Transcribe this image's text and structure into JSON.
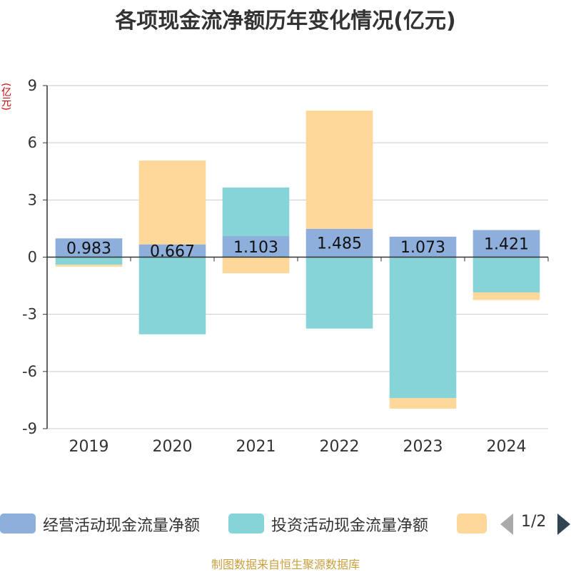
{
  "title": "各项现金流净额历年变化情况(亿元)",
  "unit_label": "(亿元)",
  "source": "制图数据来自恒生聚源数据库",
  "pager": {
    "text": "1/2"
  },
  "colors": {
    "operating": "#8eaedb",
    "investing": "#86d4d8",
    "financing": "#fdd899",
    "axis": "#333333",
    "grid": "#cccccc"
  },
  "legend": [
    {
      "label": "经营活动现金流量净额",
      "color": "#8eaedb"
    },
    {
      "label": "投资活动现金流量净额",
      "color": "#86d4d8"
    },
    {
      "label": "",
      "color": "#fdd899"
    }
  ],
  "chart_data": {
    "type": "bar",
    "stacked": true,
    "categories": [
      "2019",
      "2020",
      "2021",
      "2022",
      "2023",
      "2024"
    ],
    "series": [
      {
        "name": "经营活动现金流量净额",
        "values": [
          0.983,
          0.667,
          1.103,
          1.485,
          1.073,
          1.421
        ],
        "color": "#8eaedb",
        "labels": [
          "0.983",
          "0.667",
          "1.103",
          "1.485",
          "1.073",
          "1.421"
        ]
      },
      {
        "name": "投资活动现金流量净额",
        "values": [
          -0.4,
          -4.05,
          2.55,
          -3.75,
          -7.4,
          -1.85
        ],
        "color": "#86d4d8"
      },
      {
        "values": [
          -0.1,
          4.4,
          -0.85,
          6.2,
          -0.55,
          -0.4
        ],
        "color": "#fdd899"
      }
    ],
    "ylim": [
      -9,
      9
    ],
    "yticks": [
      -9,
      -6,
      -3,
      0,
      3,
      6,
      9
    ],
    "grid": true,
    "legend_position": "bottom"
  }
}
